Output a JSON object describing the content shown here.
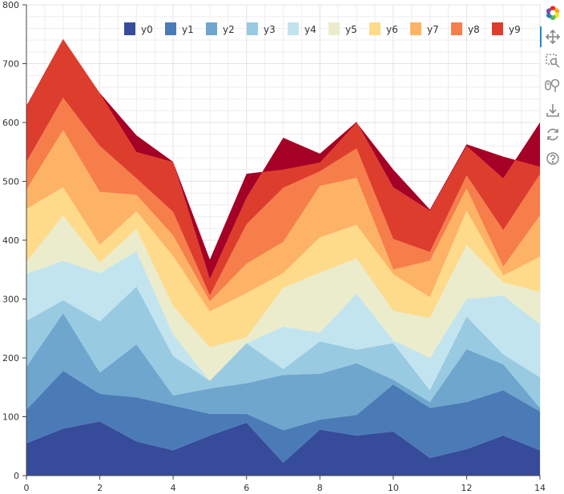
{
  "chart_data": {
    "type": "area",
    "stacked": true,
    "title": "",
    "xlabel": "",
    "ylabel": "",
    "xlim": [
      0,
      14
    ],
    "ylim": [
      0,
      800
    ],
    "xticks": [
      0,
      2,
      4,
      6,
      8,
      10,
      12,
      14
    ],
    "yticks": [
      0,
      100,
      200,
      300,
      400,
      500,
      600,
      700,
      800
    ],
    "grid": true,
    "legend_position": "top",
    "x": [
      0,
      1,
      2,
      3,
      4,
      5,
      6,
      7,
      8,
      9,
      10,
      11,
      12,
      13,
      14
    ],
    "series": [
      {
        "name": "y0",
        "color": "#364B9A",
        "values": [
          55,
          80,
          92,
          58,
          43,
          68,
          90,
          22,
          78,
          68,
          75,
          30,
          45,
          68,
          43
        ]
      },
      {
        "name": "y1",
        "color": "#4A7BB7",
        "values": [
          57,
          98,
          47,
          75,
          76,
          37,
          15,
          55,
          17,
          35,
          80,
          85,
          80,
          77,
          66
        ]
      },
      {
        "name": "y2",
        "color": "#6EA6CD",
        "values": [
          73,
          98,
          36,
          90,
          17,
          43,
          52,
          94,
          78,
          88,
          8,
          10,
          90,
          44,
          6
        ]
      },
      {
        "name": "y3",
        "color": "#98CAE1",
        "values": [
          78,
          22,
          87,
          98,
          67,
          13,
          68,
          10,
          55,
          23,
          62,
          20,
          55,
          17,
          52
        ]
      },
      {
        "name": "y4",
        "color": "#C2E4EF",
        "values": [
          80,
          67,
          82,
          60,
          37,
          0,
          0,
          72,
          15,
          95,
          5,
          55,
          30,
          100,
          90
        ]
      },
      {
        "name": "y5",
        "color": "#EAECCC",
        "values": [
          20,
          77,
          18,
          38,
          48,
          57,
          10,
          66,
          102,
          60,
          50,
          68,
          92,
          22,
          55
        ]
      },
      {
        "name": "y6",
        "color": "#FEDA8B",
        "values": [
          90,
          48,
          30,
          30,
          85,
          61,
          75,
          25,
          60,
          57,
          62,
          35,
          58,
          12,
          60
        ]
      },
      {
        "name": "y7",
        "color": "#FDB366",
        "values": [
          33,
          97,
          90,
          28,
          35,
          17,
          50,
          53,
          87,
          80,
          8,
          62,
          38,
          15,
          70
        ]
      },
      {
        "name": "y8",
        "color": "#F67E4B",
        "values": [
          47,
          55,
          78,
          28,
          40,
          10,
          67,
          92,
          25,
          50,
          52,
          15,
          22,
          62,
          70
        ]
      },
      {
        "name": "y9",
        "color": "#DD3D2D",
        "values": [
          95,
          100,
          90,
          73,
          85,
          28,
          45,
          85,
          30,
          45,
          88,
          70,
          50,
          88,
          88
        ]
      }
    ],
    "layer_colors_note": "",
    "fill_colors": [
      "#364B9A",
      "#4A7BB7",
      "#6EA6CD",
      "#98CAE1",
      "#C2E4EF",
      "#EAECCC",
      "#FEDA8B",
      "#FDB366",
      "#F67E4B",
      "#DD3D2D",
      "#A50026"
    ]
  },
  "toolbar": {
    "tools": [
      {
        "name": "bokeh-logo-icon"
      },
      {
        "name": "pan-icon"
      },
      {
        "name": "box-zoom-icon"
      },
      {
        "name": "wheel-zoom-icon"
      },
      {
        "name": "save-icon"
      },
      {
        "name": "reset-icon"
      },
      {
        "name": "help-icon"
      }
    ]
  }
}
